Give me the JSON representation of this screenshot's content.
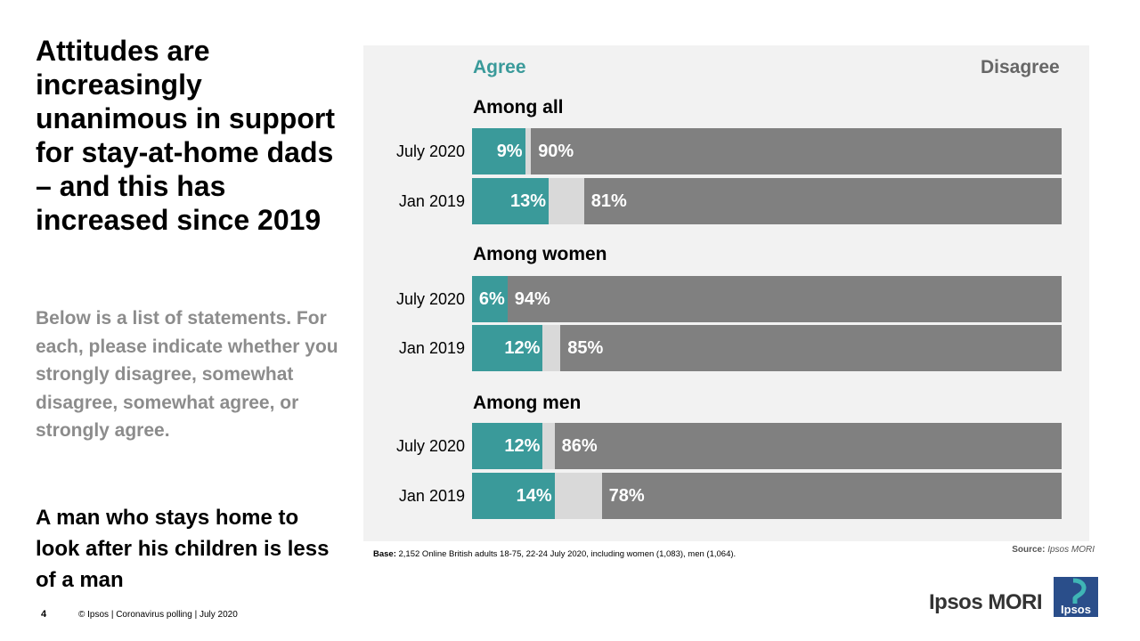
{
  "title": "Attitudes are increasingly unanimous in support for stay-at-home dads – and this has increased since 2019",
  "intro": "Below is a list of statements. For each, please indicate whether you strongly disagree, somewhat disagree, somewhat agree, or strongly agree.",
  "statement": "A man who stays home to look after his children is less of a man",
  "colors": {
    "agree": "#3a9a9a",
    "neutral": "#d9d9d9",
    "disagree": "#808080"
  },
  "chart_data": {
    "type": "bar",
    "orientation": "horizontal-stacked",
    "legend": {
      "agree": "Agree",
      "disagree": "Disagree"
    },
    "groups": [
      {
        "title": "Among all",
        "rows": [
          {
            "label": "July 2020",
            "agree": 9,
            "disagree": 90,
            "agree_label": "9%",
            "disagree_label": "90%"
          },
          {
            "label": "Jan 2019",
            "agree": 13,
            "disagree": 81,
            "agree_label": "13%",
            "disagree_label": "81%"
          }
        ]
      },
      {
        "title": "Among women",
        "rows": [
          {
            "label": "July 2020",
            "agree": 6,
            "disagree": 94,
            "agree_label": "6%",
            "disagree_label": "94%"
          },
          {
            "label": "Jan 2019",
            "agree": 12,
            "disagree": 85,
            "agree_label": "12%",
            "disagree_label": "85%"
          }
        ]
      },
      {
        "title": "Among men",
        "rows": [
          {
            "label": "July 2020",
            "agree": 12,
            "disagree": 86,
            "agree_label": "12%",
            "disagree_label": "86%"
          },
          {
            "label": "Jan 2019",
            "agree": 14,
            "disagree": 78,
            "agree_label": "14%",
            "disagree_label": "78%"
          }
        ]
      }
    ]
  },
  "base": {
    "label": "Base:",
    "text": " 2,152 Online British adults 18-75, 22-24 July 2020, including women (1,083), men (1,064)."
  },
  "source": {
    "label": "Source:",
    "text": " Ipsos MORI"
  },
  "footer": {
    "page_number": "4",
    "text": "© Ipsos | Coronavirus polling | July 2020",
    "brand": "Ipsos MORI",
    "logo_text": "Ipsos"
  }
}
